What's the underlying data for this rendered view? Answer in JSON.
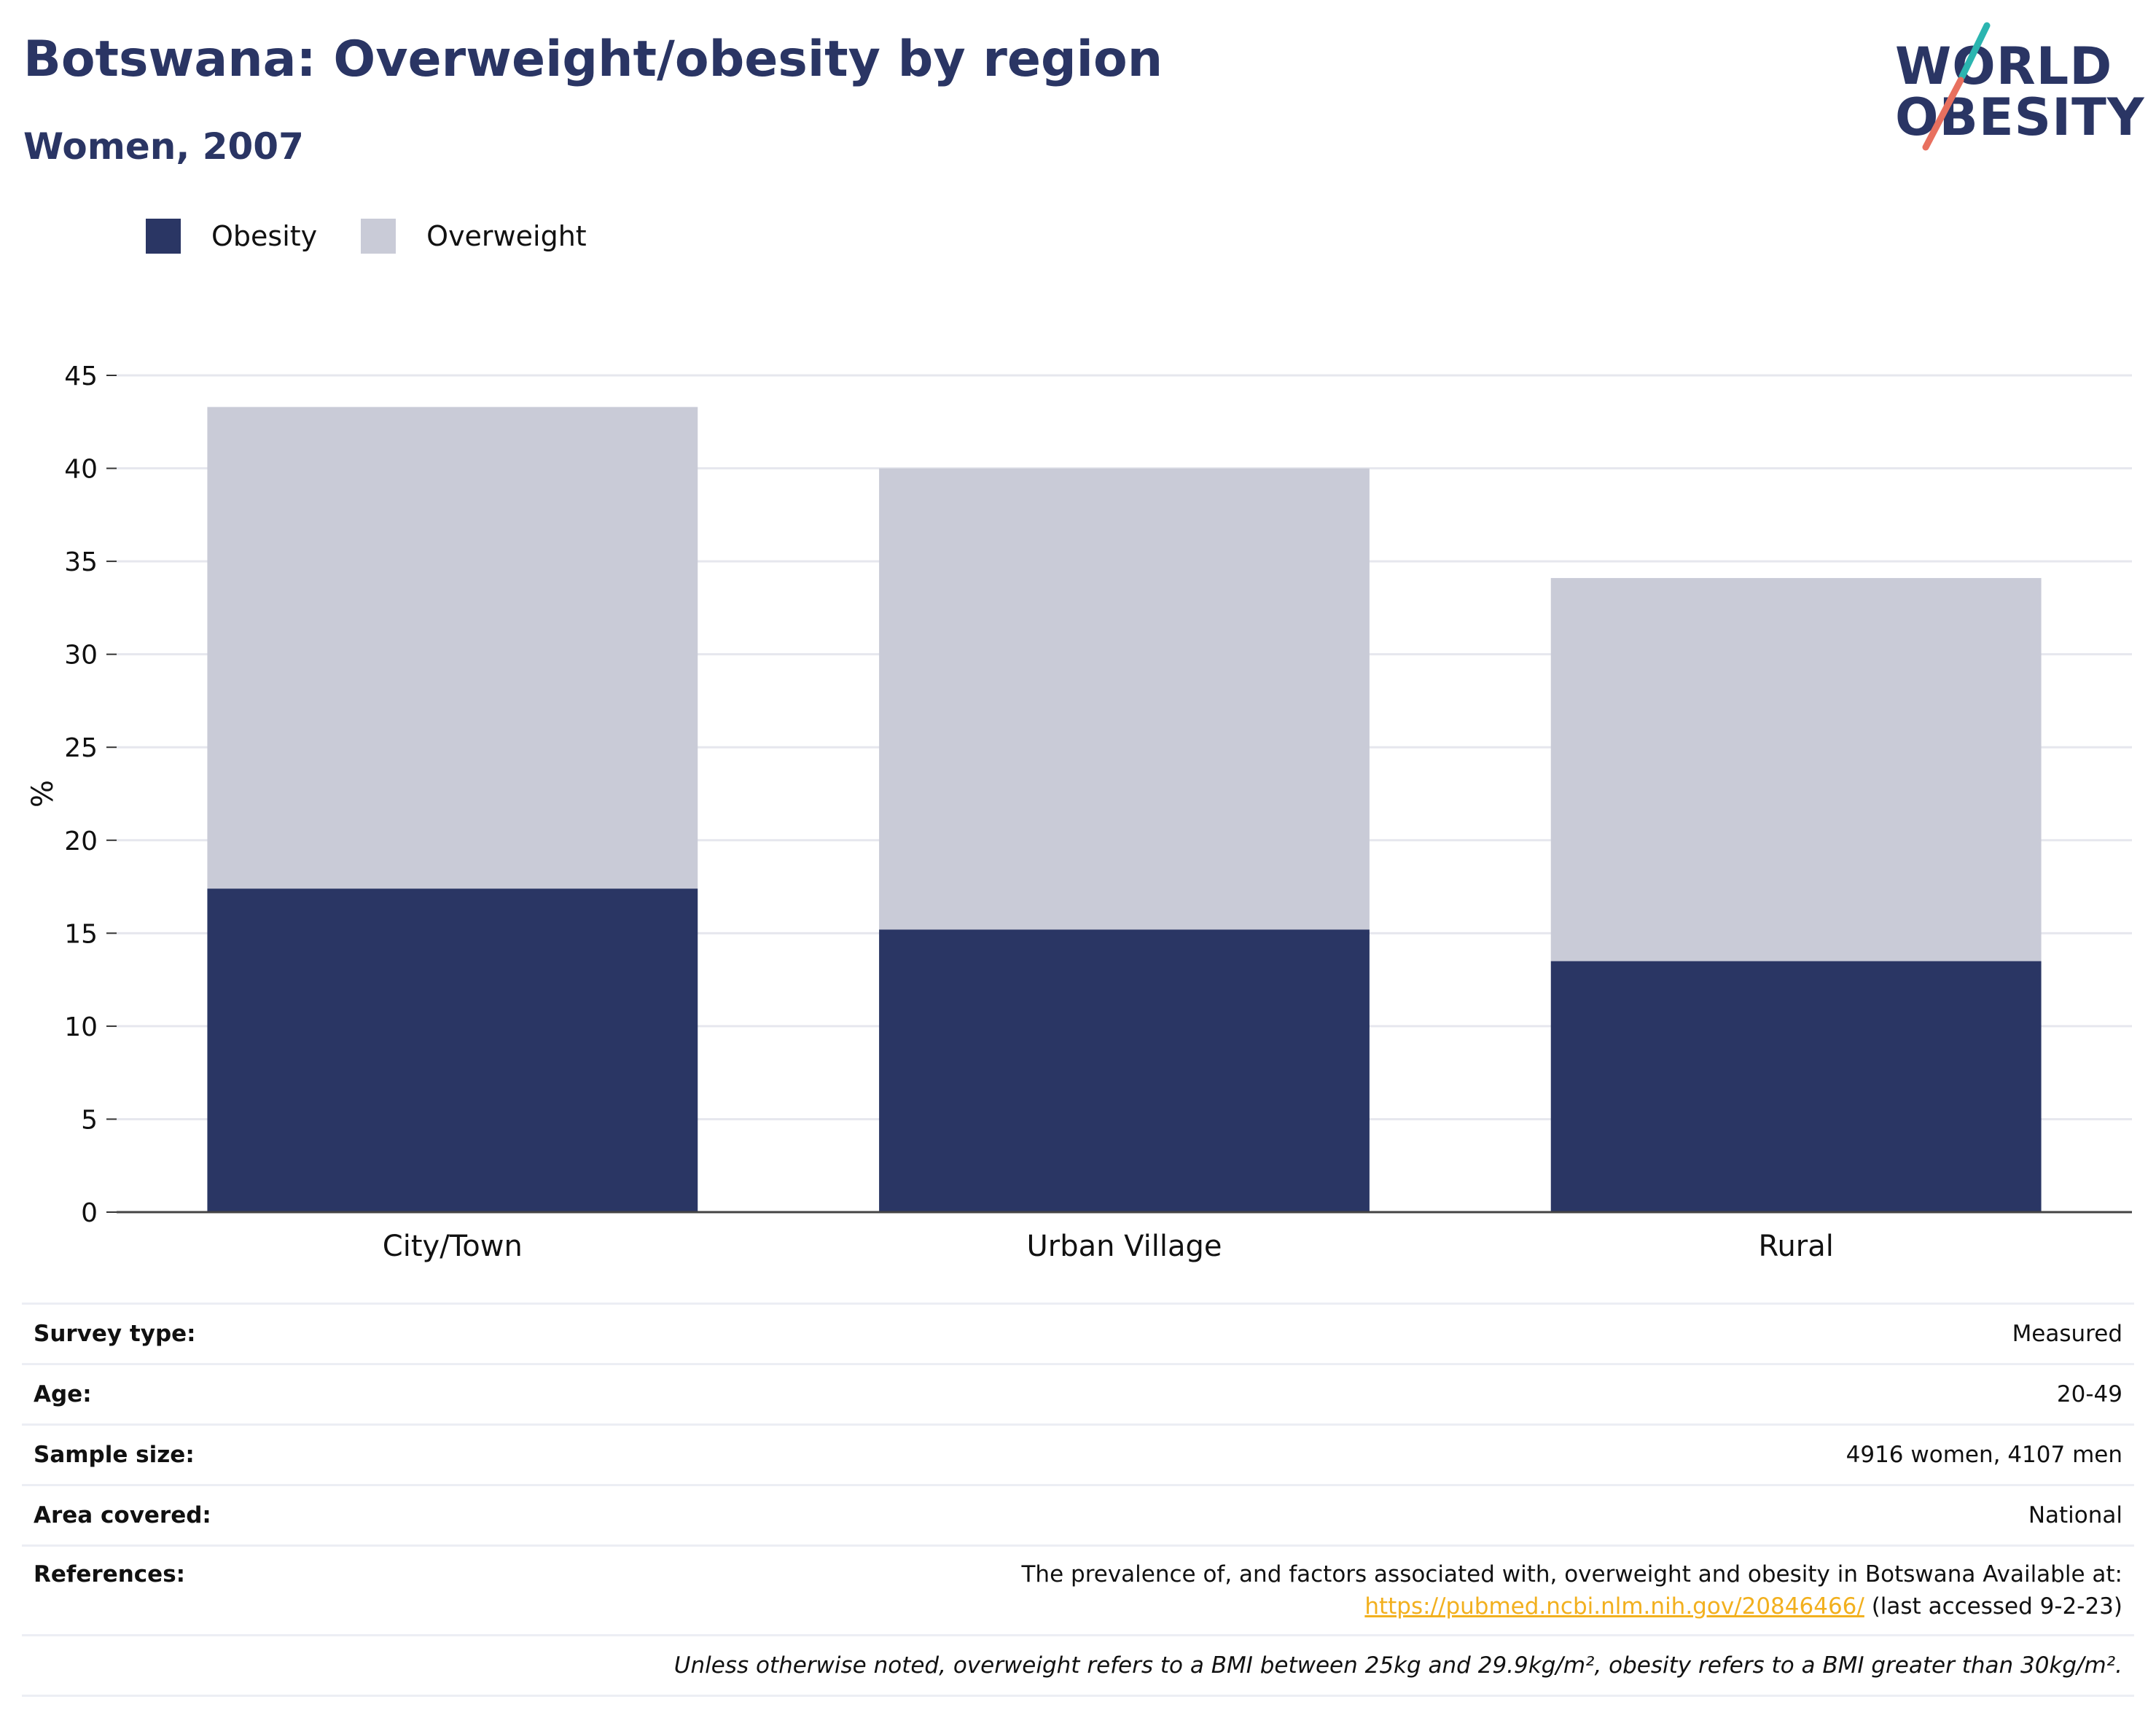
{
  "header": {
    "title": "Botswana: Overweight/obesity by region",
    "subtitle": "Women, 2007"
  },
  "logo": {
    "line1": "WORLD",
    "line2": "OBESITY"
  },
  "colors": {
    "obesity": "#2a3664",
    "overweight": "#c9cbd7",
    "accent_teal": "#2bb5b0",
    "accent_coral": "#e8705f",
    "link": "#f2b01e"
  },
  "legend": {
    "items": [
      {
        "label": "Obesity",
        "color": "#2a3664"
      },
      {
        "label": "Overweight",
        "color": "#c9cbd7"
      }
    ]
  },
  "chart_data": {
    "type": "bar",
    "stacked": true,
    "categories": [
      "City/Town",
      "Urban Village",
      "Rural"
    ],
    "series": [
      {
        "name": "Obesity",
        "values": [
          17.4,
          15.2,
          13.5
        ]
      },
      {
        "name": "Overweight",
        "values": [
          25.9,
          24.8,
          20.6
        ]
      }
    ],
    "ylabel": "%",
    "ylim": [
      0,
      45
    ],
    "yticks": [
      0,
      5,
      10,
      15,
      20,
      25,
      30,
      35,
      40,
      45
    ],
    "grid": true,
    "legend_position": "top-left"
  },
  "info": {
    "survey_type": {
      "label": "Survey type:",
      "value": "Measured"
    },
    "age": {
      "label": "Age:",
      "value": "20-49"
    },
    "sample_size": {
      "label": "Sample size:",
      "value": "4916 women, 4107 men"
    },
    "area_covered": {
      "label": "Area covered:",
      "value": "National"
    },
    "references": {
      "label": "References:",
      "text": "The prevalence of, and factors associated with, overweight and obesity in Botswana Available at:",
      "link": "https://pubmed.ncbi.nlm.nih.gov/20846466/",
      "suffix": "(last accessed 9-2-23)"
    },
    "note": "Unless otherwise noted, overweight refers to a BMI between 25kg and 29.9kg/m², obesity refers to a BMI greater than 30kg/m²."
  }
}
